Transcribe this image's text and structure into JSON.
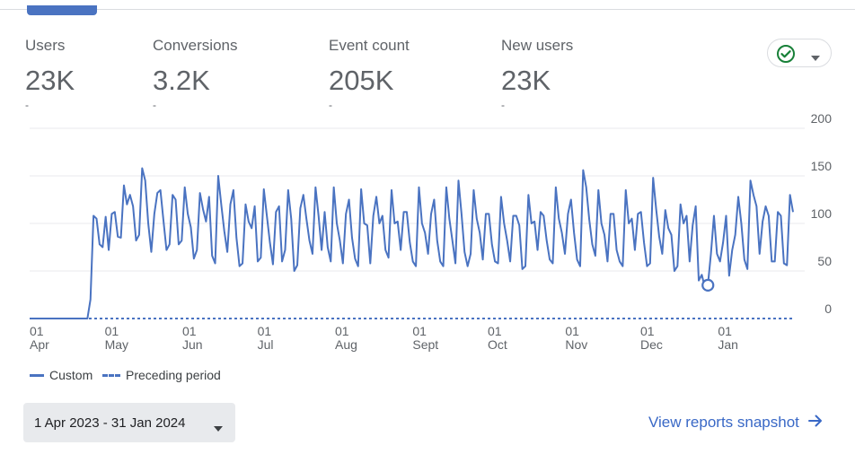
{
  "metrics": [
    {
      "label": "Users",
      "value": "23K",
      "change": "-",
      "active": true
    },
    {
      "label": "Conversions",
      "value": "3.2K",
      "change": "-",
      "active": false
    },
    {
      "label": "Event count",
      "value": "205K",
      "change": "-",
      "active": false
    },
    {
      "label": "New users",
      "value": "23K",
      "change": "-",
      "active": false
    }
  ],
  "status_icon": "check-circle-icon",
  "colors": {
    "accent": "#4a73c1",
    "link": "#3968c6",
    "check": "#188038",
    "grid": "#e8eaed"
  },
  "legend": {
    "custom": "Custom",
    "preceding": "Preceding period"
  },
  "date_range": "1 Apr 2023 - 31 Jan 2024",
  "snapshot_link": "View reports snapshot",
  "chart_data": {
    "type": "line",
    "x_start": "2023-04-01",
    "x_end": "2024-01-31",
    "ylim": [
      0,
      200
    ],
    "yticks": [
      200,
      150,
      100,
      50,
      0
    ],
    "xtick_labels": [
      {
        "day": "01",
        "month": "Apr"
      },
      {
        "day": "01",
        "month": "May"
      },
      {
        "day": "01",
        "month": "Jun"
      },
      {
        "day": "01",
        "month": "Jul"
      },
      {
        "day": "01",
        "month": "Aug"
      },
      {
        "day": "01",
        "month": "Sept"
      },
      {
        "day": "01",
        "month": "Oct"
      },
      {
        "day": "01",
        "month": "Nov"
      },
      {
        "day": "01",
        "month": "Dec"
      },
      {
        "day": "01",
        "month": "Jan"
      }
    ],
    "highlight_point": {
      "date": "2023-12-28",
      "value": 35
    },
    "series": [
      {
        "name": "Custom",
        "style": "solid",
        "values": [
          0,
          0,
          0,
          0,
          0,
          0,
          0,
          0,
          0,
          0,
          0,
          0,
          0,
          0,
          0,
          0,
          0,
          0,
          0,
          0,
          20,
          108,
          105,
          78,
          75,
          107,
          72,
          110,
          112,
          86,
          85,
          140,
          120,
          130,
          118,
          82,
          88,
          158,
          145,
          100,
          70,
          110,
          132,
          135,
          103,
          72,
          78,
          130,
          125,
          78,
          82,
          138,
          110,
          96,
          63,
          72,
          132,
          115,
          102,
          128,
          66,
          58,
          150,
          120,
          92,
          70,
          120,
          135,
          85,
          55,
          58,
          120,
          102,
          95,
          118,
          60,
          64,
          136,
          108,
          80,
          57,
          112,
          118,
          60,
          72,
          135,
          105,
          50,
          56,
          116,
          130,
          105,
          82,
          68,
          138,
          108,
          72,
          112,
          75,
          60,
          138,
          100,
          82,
          58,
          110,
          125,
          85,
          63,
          55,
          136,
          100,
          98,
          58,
          108,
          128,
          100,
          108,
          72,
          64,
          135,
          100,
          102,
          72,
          112,
          112,
          80,
          60,
          55,
          138,
          100,
          90,
          68,
          110,
          125,
          82,
          60,
          55,
          138,
          105,
          82,
          58,
          145,
          110,
          70,
          55,
          68,
          135,
          105,
          90,
          62,
          110,
          110,
          78,
          60,
          58,
          128,
          100,
          82,
          60,
          108,
          108,
          98,
          52,
          55,
          130,
          100,
          102,
          72,
          112,
          108,
          82,
          62,
          58,
          138,
          105,
          90,
          68,
          110,
          125,
          90,
          62,
          55,
          156,
          138,
          104,
          78,
          66,
          135,
          100,
          88,
          60,
          110,
          110,
          72,
          60,
          55,
          135,
          100,
          105,
          72,
          110,
          112,
          80,
          55,
          58,
          148,
          115,
          86,
          68,
          114,
          95,
          88,
          50,
          55,
          120,
          100,
          108,
          60,
          98,
          118,
          40,
          46,
          33,
          35,
          68,
          108,
          68,
          60,
          80,
          108,
          45,
          72,
          88,
          128,
          100,
          62,
          52,
          145,
          130,
          118,
          68,
          102,
          118,
          108,
          60,
          60,
          112,
          108,
          58,
          56,
          130,
          112
        ]
      },
      {
        "name": "Preceding period",
        "style": "dashed",
        "values": [
          0,
          0
        ]
      }
    ]
  }
}
